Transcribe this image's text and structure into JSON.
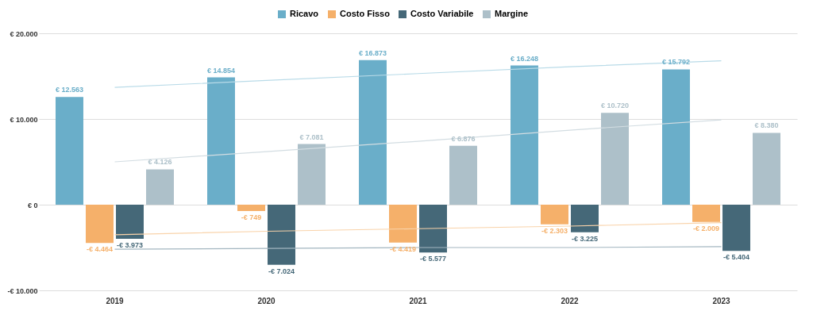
{
  "chart_data": {
    "type": "bar",
    "categories": [
      "2019",
      "2020",
      "2021",
      "2022",
      "2023"
    ],
    "series": [
      {
        "name": "Ricavo",
        "color": "#6aaec9",
        "values": [
          12563,
          14854,
          16873,
          16248,
          15792
        ],
        "value_labels": [
          "€ 12.563",
          "€ 14.854",
          "€ 16.873",
          "€ 16.248",
          "€ 15.792"
        ]
      },
      {
        "name": "Costo Fisso",
        "color": "#f5b06a",
        "values": [
          -4464,
          -749,
          -4419,
          -2303,
          -2009
        ],
        "value_labels": [
          "-€ 4.464",
          "-€ 749",
          "-€ 4.419",
          "-€ 2.303",
          "-€ 2.009"
        ]
      },
      {
        "name": "Costo Variabile",
        "color": "#456878",
        "values": [
          -3973,
          -7024,
          -5577,
          -3225,
          -5404
        ],
        "value_labels": [
          "-€ 3.973",
          "-€ 7.024",
          "-€ 5.577",
          "-€ 3.225",
          "-€ 5.404"
        ]
      },
      {
        "name": "Margine",
        "color": "#adc0c9",
        "values": [
          4126,
          7081,
          6876,
          10720,
          8380
        ],
        "value_labels": [
          "€ 4.126",
          "€ 7.081",
          "€ 6.876",
          "€ 10.720",
          "€ 8.380"
        ]
      },
      {
        "type": "line",
        "color": "#b9dbe8",
        "values": [
          13700,
          14500,
          15300,
          16100,
          16800
        ]
      },
      {
        "type": "line",
        "color": "#f9d3aa",
        "values": [
          -3500,
          -3100,
          -2800,
          -2500,
          -2100
        ]
      },
      {
        "type": "line",
        "color": "#a3b6c0",
        "values": [
          -5200,
          -5100,
          -5000,
          -5000,
          -4900
        ]
      },
      {
        "type": "line",
        "color": "#d3dde2",
        "values": [
          5000,
          6200,
          7400,
          8700,
          9900
        ]
      }
    ],
    "ylim": [
      -10000,
      20000
    ],
    "yticks": [
      {
        "value": -10000,
        "label": "-€ 10.000"
      },
      {
        "value": 0,
        "label": "€ 0"
      },
      {
        "value": 10000,
        "label": "€ 10.000"
      },
      {
        "value": 20000,
        "label": "€ 20.000"
      }
    ],
    "grid": "y",
    "legend": "top"
  }
}
